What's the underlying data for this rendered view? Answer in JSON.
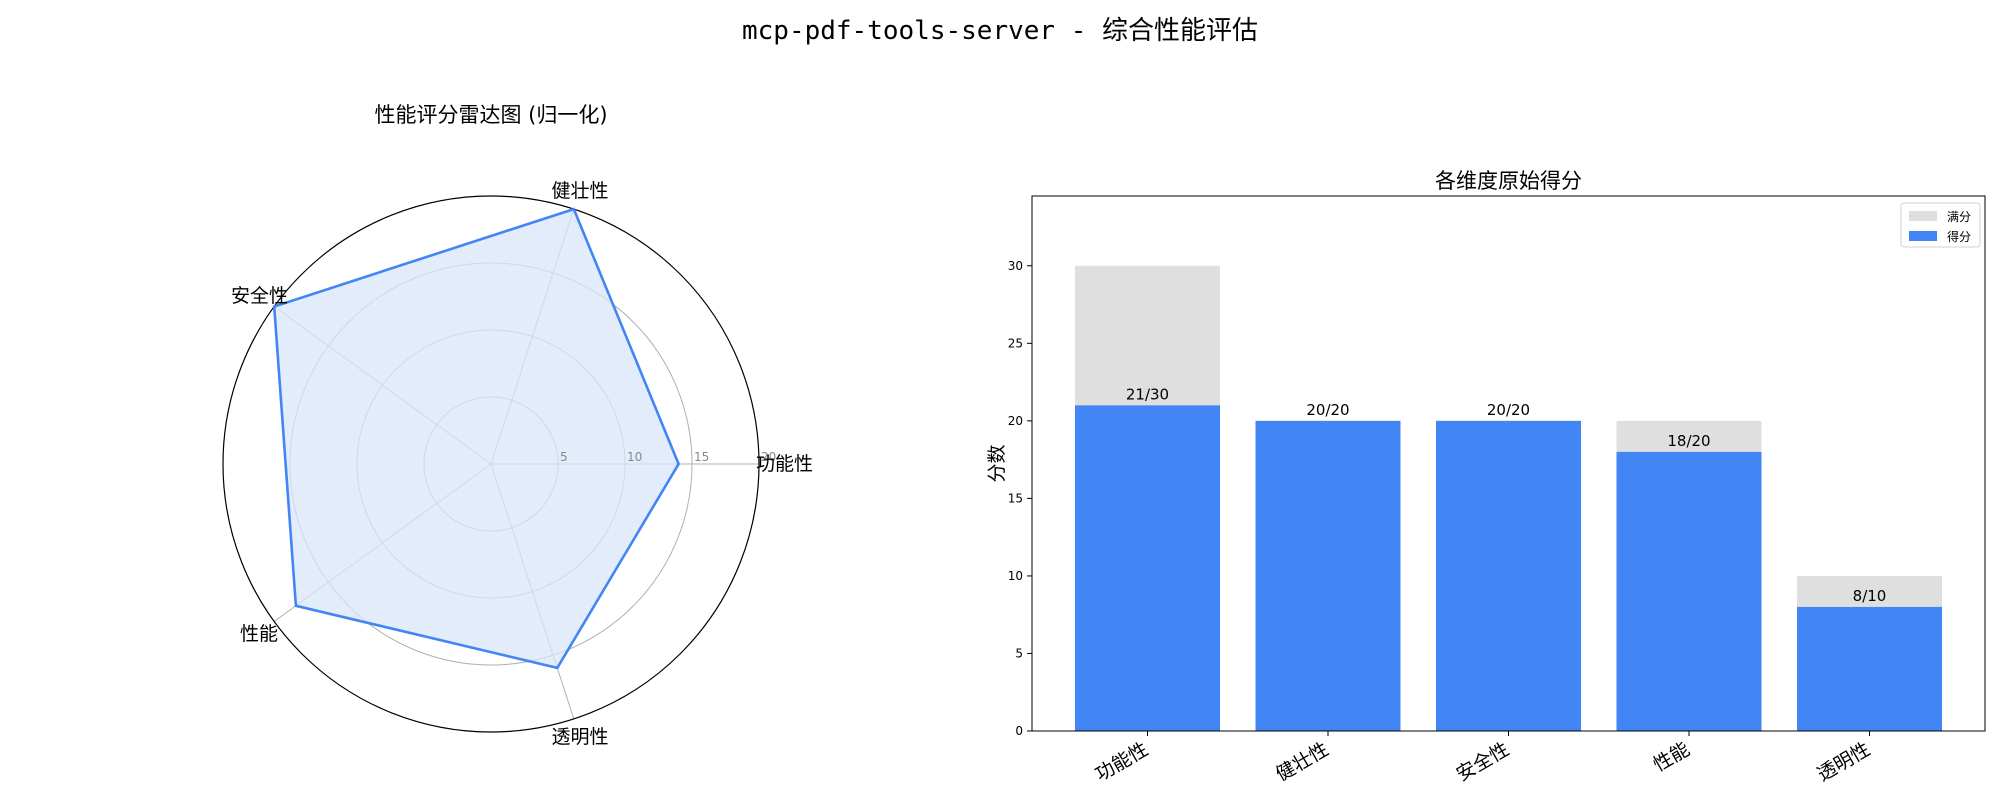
{
  "suptitle": "mcp-pdf-tools-server - 综合性能评估",
  "chart_data": [
    {
      "type": "radar",
      "title": "性能评分雷达图 (归一化)",
      "axes": [
        "功能性",
        "健壮性",
        "安全性",
        "性能",
        "透明性"
      ],
      "values": [
        14,
        20,
        20,
        18,
        16
      ],
      "rlim": [
        0,
        20
      ],
      "rticks": [
        5,
        10,
        15,
        20
      ],
      "rtick_labels": [
        "5",
        "10",
        "15",
        "20"
      ],
      "grid": true,
      "colors": {
        "line": "#4285f4",
        "fill": "#dae6fa"
      }
    },
    {
      "type": "bar",
      "title": "各维度原始得分",
      "categories": [
        "功能性",
        "健壮性",
        "安全性",
        "性能",
        "透明性"
      ],
      "series": [
        {
          "name": "满分",
          "values": [
            30,
            20,
            20,
            20,
            10
          ],
          "color": "#dfdfdf"
        },
        {
          "name": "得分",
          "values": [
            21,
            20,
            20,
            18,
            8
          ],
          "color": "#4285f4"
        }
      ],
      "data_labels": [
        "21/30",
        "20/20",
        "20/20",
        "18/20",
        "8/10"
      ],
      "ylabel": "分数",
      "xlabel": "",
      "ylim": [
        0,
        34.5
      ],
      "yticks": [
        0,
        5,
        10,
        15,
        20,
        25,
        30
      ],
      "legend": "top-right",
      "grid": false
    }
  ]
}
